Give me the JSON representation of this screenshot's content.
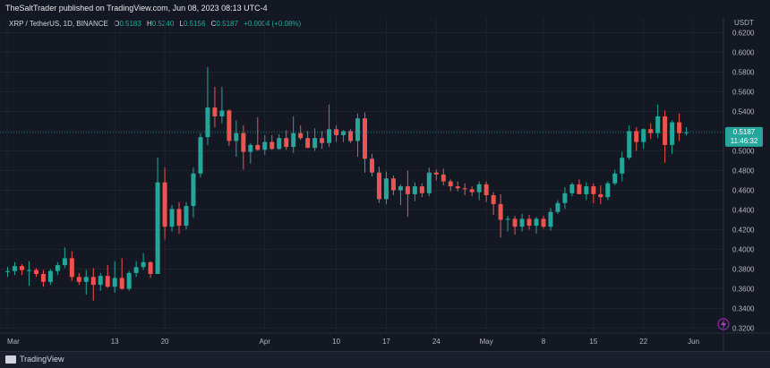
{
  "header": {
    "publisher_line": "TheSaltTrader published on TradingView.com, Jun 08, 2023 08:13 UTC-4"
  },
  "legend": {
    "symbol": "XRP / TetherUS, 1D, BINANCE",
    "o_label": "O",
    "o_value": "0.5183",
    "h_label": "H",
    "h_value": "0.5240",
    "l_label": "L",
    "l_value": "0.5156",
    "c_label": "C",
    "c_value": "0.5187",
    "change": "+0.0004 (+0.08%)"
  },
  "price_tag": {
    "value": "0.5187",
    "countdown": "11:46:32"
  },
  "footer": {
    "brand": "TradingView"
  },
  "colors": {
    "up": "#26a69a",
    "down": "#ef5350",
    "background": "#141823",
    "text": "#b2b5be"
  },
  "chart_data": {
    "type": "candlestick",
    "symbol": "XRP / TetherUS",
    "currency": "USDT",
    "ylim": [
      0.315,
      0.635
    ],
    "y_ticks": [
      "0.6200",
      "0.6000",
      "0.5800",
      "0.5600",
      "0.5400",
      "0.5200",
      "0.5000",
      "0.4800",
      "0.4600",
      "0.4400",
      "0.4200",
      "0.4000",
      "0.3800",
      "0.3600",
      "0.3400",
      "0.3200"
    ],
    "x_tick_labels": [
      "Mar",
      "13",
      "20",
      "Apr",
      "10",
      "17",
      "24",
      "May",
      "8",
      "15",
      "22",
      "Jun"
    ],
    "candles": [
      {
        "o": 0.377,
        "h": 0.382,
        "l": 0.372,
        "c": 0.378
      },
      {
        "o": 0.378,
        "h": 0.387,
        "l": 0.374,
        "c": 0.383
      },
      {
        "o": 0.383,
        "h": 0.385,
        "l": 0.374,
        "c": 0.379
      },
      {
        "o": 0.379,
        "h": 0.388,
        "l": 0.363,
        "c": 0.379
      },
      {
        "o": 0.379,
        "h": 0.381,
        "l": 0.372,
        "c": 0.375
      },
      {
        "o": 0.375,
        "h": 0.379,
        "l": 0.362,
        "c": 0.367
      },
      {
        "o": 0.367,
        "h": 0.38,
        "l": 0.364,
        "c": 0.378
      },
      {
        "o": 0.378,
        "h": 0.387,
        "l": 0.374,
        "c": 0.384
      },
      {
        "o": 0.384,
        "h": 0.402,
        "l": 0.381,
        "c": 0.391
      },
      {
        "o": 0.391,
        "h": 0.398,
        "l": 0.368,
        "c": 0.372
      },
      {
        "o": 0.372,
        "h": 0.376,
        "l": 0.364,
        "c": 0.367
      },
      {
        "o": 0.367,
        "h": 0.379,
        "l": 0.354,
        "c": 0.372
      },
      {
        "o": 0.372,
        "h": 0.381,
        "l": 0.348,
        "c": 0.364
      },
      {
        "o": 0.364,
        "h": 0.376,
        "l": 0.358,
        "c": 0.373
      },
      {
        "o": 0.373,
        "h": 0.384,
        "l": 0.361,
        "c": 0.362
      },
      {
        "o": 0.362,
        "h": 0.388,
        "l": 0.356,
        "c": 0.371
      },
      {
        "o": 0.371,
        "h": 0.391,
        "l": 0.359,
        "c": 0.36
      },
      {
        "o": 0.36,
        "h": 0.378,
        "l": 0.358,
        "c": 0.376
      },
      {
        "o": 0.376,
        "h": 0.388,
        "l": 0.372,
        "c": 0.382
      },
      {
        "o": 0.382,
        "h": 0.396,
        "l": 0.379,
        "c": 0.387
      },
      {
        "o": 0.387,
        "h": 0.388,
        "l": 0.371,
        "c": 0.375
      },
      {
        "o": 0.375,
        "h": 0.493,
        "l": 0.375,
        "c": 0.468
      },
      {
        "o": 0.468,
        "h": 0.483,
        "l": 0.41,
        "c": 0.423
      },
      {
        "o": 0.423,
        "h": 0.445,
        "l": 0.418,
        "c": 0.441
      },
      {
        "o": 0.441,
        "h": 0.448,
        "l": 0.416,
        "c": 0.424
      },
      {
        "o": 0.424,
        "h": 0.448,
        "l": 0.42,
        "c": 0.444
      },
      {
        "o": 0.444,
        "h": 0.483,
        "l": 0.432,
        "c": 0.477
      },
      {
        "o": 0.477,
        "h": 0.518,
        "l": 0.473,
        "c": 0.514
      },
      {
        "o": 0.514,
        "h": 0.585,
        "l": 0.506,
        "c": 0.544
      },
      {
        "o": 0.544,
        "h": 0.565,
        "l": 0.524,
        "c": 0.535
      },
      {
        "o": 0.535,
        "h": 0.565,
        "l": 0.528,
        "c": 0.541
      },
      {
        "o": 0.541,
        "h": 0.542,
        "l": 0.505,
        "c": 0.51
      },
      {
        "o": 0.51,
        "h": 0.531,
        "l": 0.494,
        "c": 0.518
      },
      {
        "o": 0.518,
        "h": 0.526,
        "l": 0.481,
        "c": 0.499
      },
      {
        "o": 0.499,
        "h": 0.508,
        "l": 0.487,
        "c": 0.506
      },
      {
        "o": 0.506,
        "h": 0.534,
        "l": 0.5,
        "c": 0.501
      },
      {
        "o": 0.501,
        "h": 0.516,
        "l": 0.496,
        "c": 0.509
      },
      {
        "o": 0.509,
        "h": 0.516,
        "l": 0.501,
        "c": 0.502
      },
      {
        "o": 0.502,
        "h": 0.517,
        "l": 0.501,
        "c": 0.513
      },
      {
        "o": 0.513,
        "h": 0.521,
        "l": 0.501,
        "c": 0.504
      },
      {
        "o": 0.504,
        "h": 0.535,
        "l": 0.498,
        "c": 0.518
      },
      {
        "o": 0.518,
        "h": 0.526,
        "l": 0.511,
        "c": 0.513
      },
      {
        "o": 0.513,
        "h": 0.52,
        "l": 0.503,
        "c": 0.503
      },
      {
        "o": 0.503,
        "h": 0.523,
        "l": 0.5,
        "c": 0.513
      },
      {
        "o": 0.513,
        "h": 0.52,
        "l": 0.502,
        "c": 0.508
      },
      {
        "o": 0.508,
        "h": 0.547,
        "l": 0.504,
        "c": 0.522
      },
      {
        "o": 0.522,
        "h": 0.526,
        "l": 0.509,
        "c": 0.516
      },
      {
        "o": 0.516,
        "h": 0.521,
        "l": 0.509,
        "c": 0.52
      },
      {
        "o": 0.52,
        "h": 0.522,
        "l": 0.508,
        "c": 0.51
      },
      {
        "o": 0.51,
        "h": 0.538,
        "l": 0.494,
        "c": 0.533
      },
      {
        "o": 0.533,
        "h": 0.539,
        "l": 0.478,
        "c": 0.492
      },
      {
        "o": 0.492,
        "h": 0.497,
        "l": 0.474,
        "c": 0.478
      },
      {
        "o": 0.478,
        "h": 0.484,
        "l": 0.447,
        "c": 0.451
      },
      {
        "o": 0.451,
        "h": 0.479,
        "l": 0.446,
        "c": 0.472
      },
      {
        "o": 0.472,
        "h": 0.475,
        "l": 0.455,
        "c": 0.46
      },
      {
        "o": 0.46,
        "h": 0.466,
        "l": 0.445,
        "c": 0.464
      },
      {
        "o": 0.464,
        "h": 0.48,
        "l": 0.433,
        "c": 0.456
      },
      {
        "o": 0.456,
        "h": 0.468,
        "l": 0.449,
        "c": 0.464
      },
      {
        "o": 0.464,
        "h": 0.467,
        "l": 0.453,
        "c": 0.457
      },
      {
        "o": 0.457,
        "h": 0.483,
        "l": 0.454,
        "c": 0.478
      },
      {
        "o": 0.478,
        "h": 0.481,
        "l": 0.47,
        "c": 0.476
      },
      {
        "o": 0.476,
        "h": 0.482,
        "l": 0.465,
        "c": 0.469
      },
      {
        "o": 0.469,
        "h": 0.471,
        "l": 0.459,
        "c": 0.464
      },
      {
        "o": 0.464,
        "h": 0.469,
        "l": 0.459,
        "c": 0.462
      },
      {
        "o": 0.462,
        "h": 0.467,
        "l": 0.455,
        "c": 0.461
      },
      {
        "o": 0.461,
        "h": 0.464,
        "l": 0.454,
        "c": 0.458
      },
      {
        "o": 0.458,
        "h": 0.469,
        "l": 0.45,
        "c": 0.466
      },
      {
        "o": 0.466,
        "h": 0.469,
        "l": 0.448,
        "c": 0.455
      },
      {
        "o": 0.455,
        "h": 0.458,
        "l": 0.435,
        "c": 0.446
      },
      {
        "o": 0.446,
        "h": 0.456,
        "l": 0.412,
        "c": 0.43
      },
      {
        "o": 0.43,
        "h": 0.434,
        "l": 0.418,
        "c": 0.431
      },
      {
        "o": 0.431,
        "h": 0.434,
        "l": 0.415,
        "c": 0.423
      },
      {
        "o": 0.423,
        "h": 0.436,
        "l": 0.418,
        "c": 0.431
      },
      {
        "o": 0.431,
        "h": 0.435,
        "l": 0.42,
        "c": 0.424
      },
      {
        "o": 0.424,
        "h": 0.433,
        "l": 0.416,
        "c": 0.431
      },
      {
        "o": 0.431,
        "h": 0.434,
        "l": 0.421,
        "c": 0.423
      },
      {
        "o": 0.423,
        "h": 0.442,
        "l": 0.419,
        "c": 0.438
      },
      {
        "o": 0.438,
        "h": 0.45,
        "l": 0.436,
        "c": 0.447
      },
      {
        "o": 0.447,
        "h": 0.463,
        "l": 0.441,
        "c": 0.457
      },
      {
        "o": 0.457,
        "h": 0.468,
        "l": 0.454,
        "c": 0.466
      },
      {
        "o": 0.466,
        "h": 0.471,
        "l": 0.456,
        "c": 0.456
      },
      {
        "o": 0.456,
        "h": 0.468,
        "l": 0.45,
        "c": 0.464
      },
      {
        "o": 0.464,
        "h": 0.467,
        "l": 0.447,
        "c": 0.456
      },
      {
        "o": 0.456,
        "h": 0.465,
        "l": 0.446,
        "c": 0.453
      },
      {
        "o": 0.453,
        "h": 0.469,
        "l": 0.45,
        "c": 0.467
      },
      {
        "o": 0.467,
        "h": 0.481,
        "l": 0.465,
        "c": 0.477
      },
      {
        "o": 0.477,
        "h": 0.499,
        "l": 0.469,
        "c": 0.493
      },
      {
        "o": 0.493,
        "h": 0.526,
        "l": 0.491,
        "c": 0.52
      },
      {
        "o": 0.52,
        "h": 0.524,
        "l": 0.5,
        "c": 0.509
      },
      {
        "o": 0.509,
        "h": 0.523,
        "l": 0.502,
        "c": 0.522
      },
      {
        "o": 0.522,
        "h": 0.528,
        "l": 0.512,
        "c": 0.518
      },
      {
        "o": 0.518,
        "h": 0.547,
        "l": 0.513,
        "c": 0.535
      },
      {
        "o": 0.535,
        "h": 0.541,
        "l": 0.488,
        "c": 0.506
      },
      {
        "o": 0.506,
        "h": 0.531,
        "l": 0.497,
        "c": 0.529
      },
      {
        "o": 0.529,
        "h": 0.538,
        "l": 0.51,
        "c": 0.518
      },
      {
        "o": 0.5183,
        "h": 0.524,
        "l": 0.5156,
        "c": 0.5187
      }
    ]
  }
}
